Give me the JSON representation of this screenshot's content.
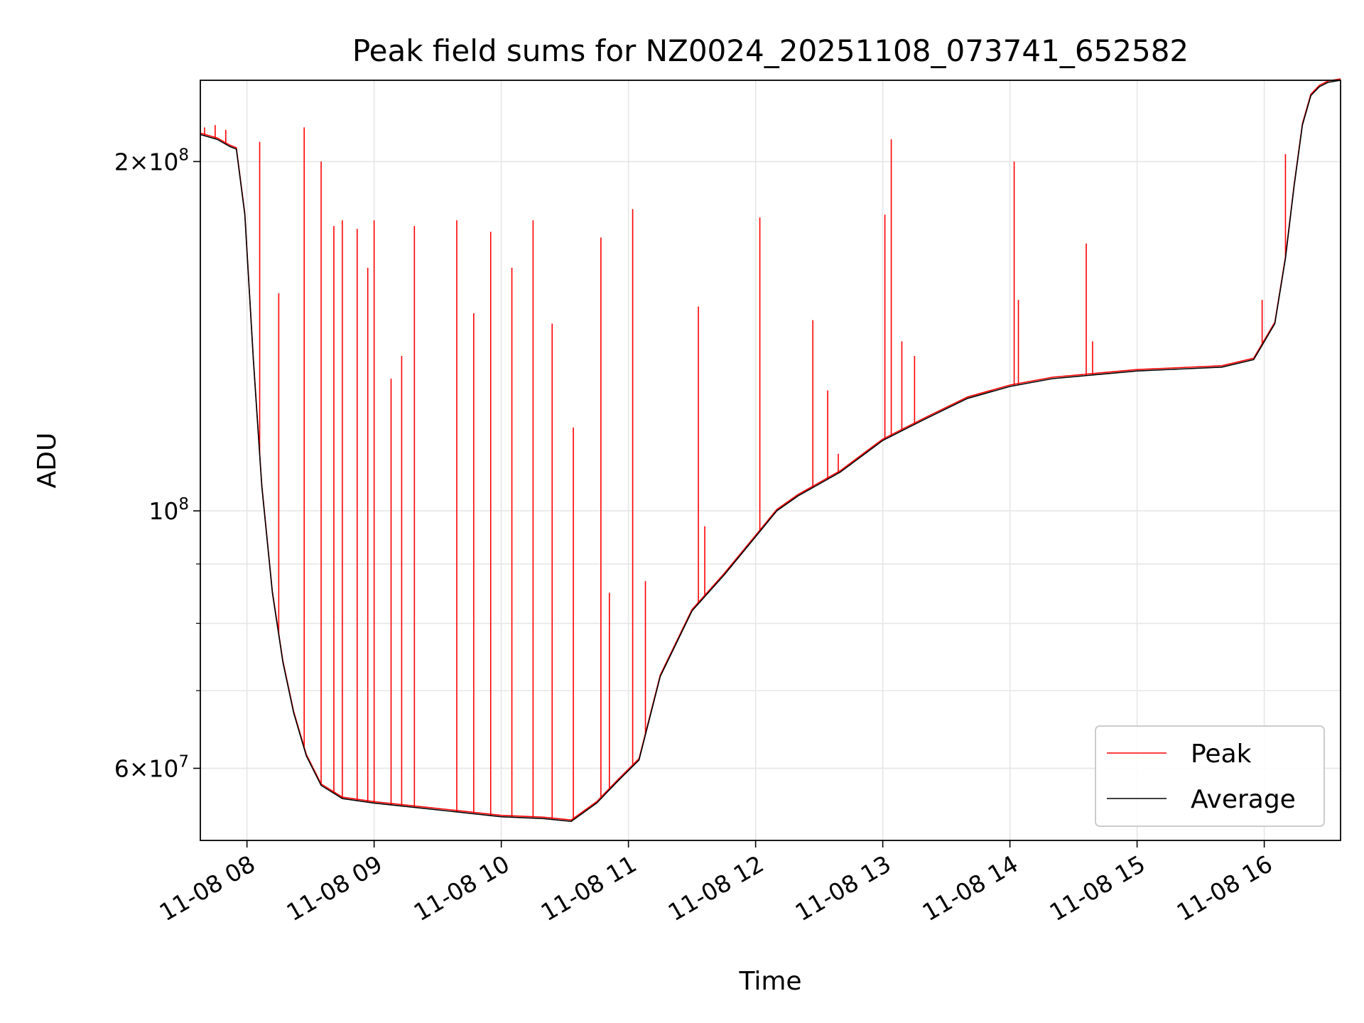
{
  "chart_data": {
    "type": "line",
    "title": "Peak field sums for NZ0024_20251108_073741_652582",
    "xlabel": "Time",
    "ylabel": "ADU",
    "y_scale": "log",
    "ylim": [
      52000000,
      235000000
    ],
    "xlim": [
      "2025-11-08 07:38",
      "2025-11-08 16:36"
    ],
    "grid": true,
    "legend_position": "lower right",
    "x_ticks": [
      {
        "value": "2025-11-08 08:00",
        "label": "11-08 08"
      },
      {
        "value": "2025-11-08 09:00",
        "label": "11-08 09"
      },
      {
        "value": "2025-11-08 10:00",
        "label": "11-08 10"
      },
      {
        "value": "2025-11-08 11:00",
        "label": "11-08 11"
      },
      {
        "value": "2025-11-08 12:00",
        "label": "11-08 12"
      },
      {
        "value": "2025-11-08 13:00",
        "label": "11-08 13"
      },
      {
        "value": "2025-11-08 14:00",
        "label": "11-08 14"
      },
      {
        "value": "2025-11-08 15:00",
        "label": "11-08 15"
      },
      {
        "value": "2025-11-08 16:00",
        "label": "11-08 16"
      }
    ],
    "y_ticks": [
      {
        "value": 60000000,
        "mantissa": "6",
        "exponent": "7"
      },
      {
        "value": 100000000,
        "mantissa": "",
        "exponent": "8"
      },
      {
        "value": 200000000,
        "mantissa": "2",
        "exponent": "8"
      }
    ],
    "y_minor_ticks": [
      70000000,
      80000000,
      90000000
    ],
    "series": [
      {
        "name": "Average",
        "color": "#000000",
        "x": [
          "2025-11-08 07:38",
          "2025-11-08 07:46",
          "2025-11-08 07:52",
          "2025-11-08 07:55",
          "2025-11-08 07:59",
          "2025-11-08 08:03",
          "2025-11-08 08:07",
          "2025-11-08 08:12",
          "2025-11-08 08:17",
          "2025-11-08 08:22",
          "2025-11-08 08:28",
          "2025-11-08 08:35",
          "2025-11-08 08:45",
          "2025-11-08 09:00",
          "2025-11-08 09:20",
          "2025-11-08 09:40",
          "2025-11-08 10:00",
          "2025-11-08 10:20",
          "2025-11-08 10:33",
          "2025-11-08 10:45",
          "2025-11-08 10:55",
          "2025-11-08 11:05",
          "2025-11-08 11:15",
          "2025-11-08 11:30",
          "2025-11-08 11:45",
          "2025-11-08 12:00",
          "2025-11-08 12:10",
          "2025-11-08 12:20",
          "2025-11-08 12:40",
          "2025-11-08 13:00",
          "2025-11-08 13:20",
          "2025-11-08 13:40",
          "2025-11-08 14:00",
          "2025-11-08 14:20",
          "2025-11-08 14:40",
          "2025-11-08 15:00",
          "2025-11-08 15:20",
          "2025-11-08 15:40",
          "2025-11-08 15:55",
          "2025-11-08 16:05",
          "2025-11-08 16:10",
          "2025-11-08 16:14",
          "2025-11-08 16:18",
          "2025-11-08 16:22",
          "2025-11-08 16:26",
          "2025-11-08 16:30",
          "2025-11-08 16:36"
        ],
        "y": [
          211000000,
          209000000,
          206000000,
          205000000,
          180000000,
          135000000,
          105000000,
          85000000,
          74000000,
          67000000,
          61500000,
          58000000,
          56500000,
          56000000,
          55500000,
          55000000,
          54500000,
          54300000,
          54000000,
          56000000,
          58500000,
          61000000,
          72000000,
          82000000,
          88000000,
          95000000,
          100000000,
          103000000,
          108000000,
          115000000,
          120000000,
          125000000,
          128000000,
          130000000,
          131000000,
          132000000,
          132500000,
          133000000,
          135000000,
          145000000,
          165000000,
          190000000,
          215000000,
          228000000,
          232000000,
          234000000,
          235000000
        ]
      },
      {
        "name": "Peak",
        "color": "#ff0000",
        "x": [
          "2025-11-08 07:40",
          "2025-11-08 07:45",
          "2025-11-08 07:50",
          "2025-11-08 08:06",
          "2025-11-08 08:15",
          "2025-11-08 08:27",
          "2025-11-08 08:35",
          "2025-11-08 08:41",
          "2025-11-08 08:45",
          "2025-11-08 08:52",
          "2025-11-08 08:57",
          "2025-11-08 09:00",
          "2025-11-08 09:08",
          "2025-11-08 09:13",
          "2025-11-08 09:19",
          "2025-11-08 09:39",
          "2025-11-08 09:47",
          "2025-11-08 09:55",
          "2025-11-08 10:05",
          "2025-11-08 10:15",
          "2025-11-08 10:24",
          "2025-11-08 10:34",
          "2025-11-08 10:47",
          "2025-11-08 10:51",
          "2025-11-08 11:02",
          "2025-11-08 11:08",
          "2025-11-08 11:33",
          "2025-11-08 11:36",
          "2025-11-08 12:02",
          "2025-11-08 12:27",
          "2025-11-08 12:34",
          "2025-11-08 12:39",
          "2025-11-08 13:01",
          "2025-11-08 13:04",
          "2025-11-08 13:09",
          "2025-11-08 13:15",
          "2025-11-08 14:02",
          "2025-11-08 14:04",
          "2025-11-08 14:36",
          "2025-11-08 14:39",
          "2025-11-08 15:59",
          "2025-11-08 16:10"
        ],
        "y": [
          214000000,
          215000000,
          213000000,
          208000000,
          154000000,
          214000000,
          200000000,
          176000000,
          178000000,
          175000000,
          162000000,
          178000000,
          130000000,
          136000000,
          176000000,
          178000000,
          148000000,
          174000000,
          162000000,
          178000000,
          145000000,
          118000000,
          172000000,
          85000000,
          182000000,
          87000000,
          150000000,
          97000000,
          179000000,
          146000000,
          127000000,
          112000000,
          180000000,
          209000000,
          140000000,
          136000000,
          200000000,
          152000000,
          170000000,
          140000000,
          152000000,
          203000000
        ]
      }
    ]
  }
}
